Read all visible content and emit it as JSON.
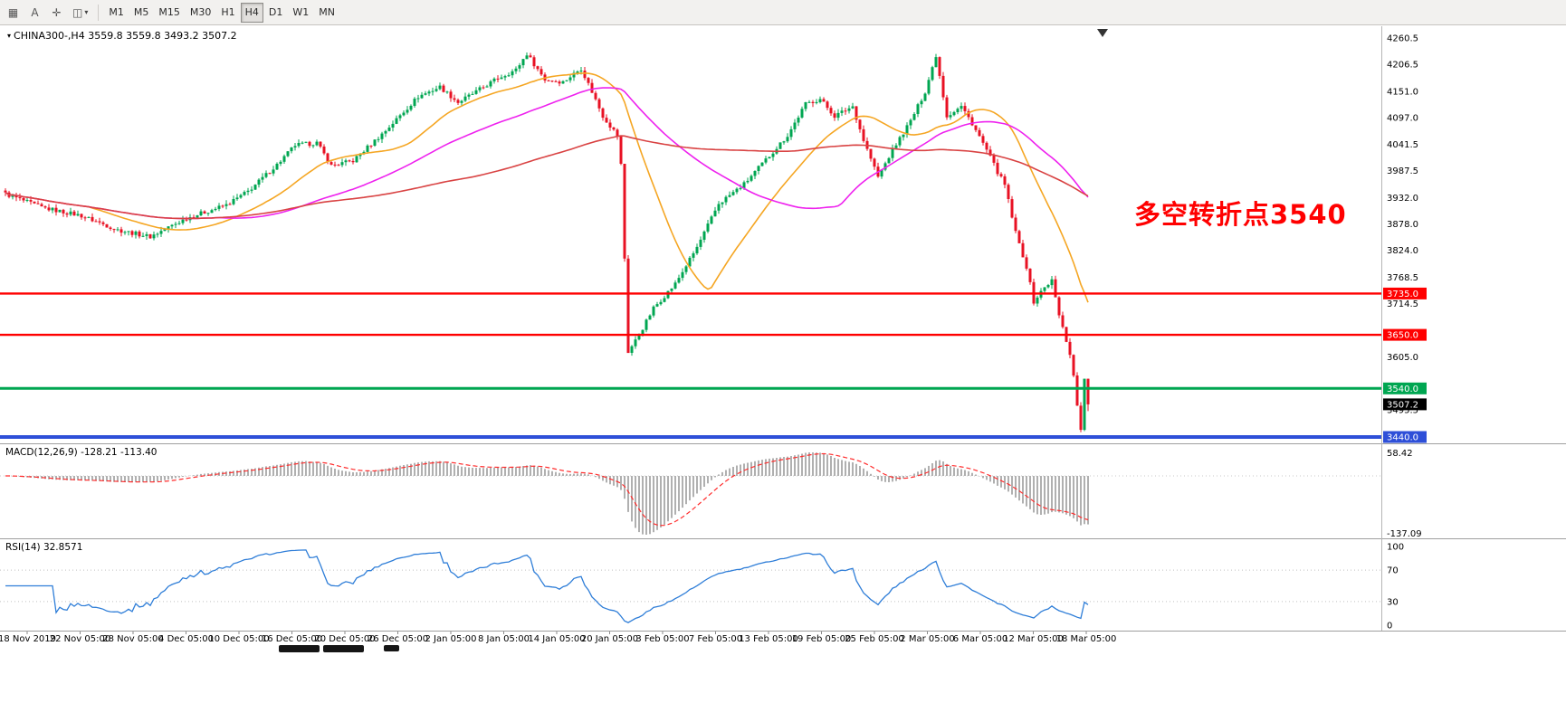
{
  "toolbar": {
    "icon_buttons": [
      {
        "name": "charts-grid-icon",
        "glyph": "▦"
      },
      {
        "name": "text-annotation-icon",
        "glyph": "A"
      },
      {
        "name": "crosshair-icon",
        "glyph": "✛"
      },
      {
        "name": "shapes-icon",
        "glyph": "◫"
      },
      {
        "name": "dropdown-caret-icon",
        "glyph": "▾"
      }
    ],
    "timeframes": [
      "M1",
      "M5",
      "M15",
      "M30",
      "H1",
      "H4",
      "D1",
      "W1",
      "MN"
    ],
    "active_timeframe": "H4"
  },
  "chart": {
    "symbol_line": "CHINA300-,H4  3559.8 3559.8 3493.2 3507.2",
    "annotation": "多空转折点3540"
  },
  "indicators": {
    "macd_label": "MACD(12,26,9) -128.21 -113.40",
    "rsi_label": "RSI(14) 32.8571"
  },
  "chart_data": {
    "type": "candlestick",
    "symbol": "CHINA300-",
    "timeframe": "H4",
    "last_bar": {
      "open": 3559.8,
      "high": 3559.8,
      "low": 3493.2,
      "close": 3507.2
    },
    "bars": 300,
    "noise_amp": 9,
    "wick_amp": 8,
    "price_axis": {
      "min": 3440.0,
      "max": 4260.5,
      "ticks": [
        "4260.5",
        "4206.5",
        "4151.0",
        "4097.0",
        "4041.5",
        "3987.5",
        "3932.0",
        "3878.0",
        "3824.0",
        "3768.5",
        "3714.5",
        "3605.0",
        "3495.5"
      ]
    },
    "colors": {
      "up": "#00a651",
      "down": "#e81123",
      "macd_hist": "#b0b0b0",
      "macd_signal": "#ff2d2d",
      "rsi": "#2f7ed8"
    },
    "moving_averages": [
      {
        "period": 24,
        "color": "#f5a623"
      },
      {
        "period": 60,
        "color": "#ee22ee"
      },
      {
        "period": 130,
        "color": "#d94343"
      }
    ],
    "hlines": [
      {
        "price": 3735.0,
        "label": "3735.0",
        "color": "#ff0000",
        "width": 2.4
      },
      {
        "price": 3650.0,
        "label": "3650.0",
        "color": "#ff0000",
        "width": 2.4
      },
      {
        "price": 3540.0,
        "label": "3540.0",
        "color": "#00a651",
        "width": 3
      },
      {
        "price": 3440.0,
        "label": "3440.0",
        "color": "#2e4fd8",
        "width": 4
      }
    ],
    "current_price_label": {
      "price": 3507.2,
      "label": "3507.2",
      "color": "#000000"
    },
    "close_anchors": [
      [
        0,
        3940
      ],
      [
        10,
        3912
      ],
      [
        21,
        3895
      ],
      [
        31,
        3866
      ],
      [
        40,
        3852
      ],
      [
        50,
        3890
      ],
      [
        61,
        3917
      ],
      [
        67,
        3945
      ],
      [
        75,
        4000
      ],
      [
        80,
        4040
      ],
      [
        86,
        4045
      ],
      [
        90,
        3998
      ],
      [
        96,
        4008
      ],
      [
        105,
        4070
      ],
      [
        114,
        4140
      ],
      [
        120,
        4160
      ],
      [
        125,
        4128
      ],
      [
        130,
        4150
      ],
      [
        136,
        4178
      ],
      [
        141,
        4195
      ],
      [
        144,
        4228
      ],
      [
        149,
        4175
      ],
      [
        154,
        4170
      ],
      [
        159,
        4198
      ],
      [
        162,
        4150
      ],
      [
        165,
        4100
      ],
      [
        169,
        4060
      ],
      [
        170,
        4000
      ],
      [
        172,
        3615
      ],
      [
        175,
        3650
      ],
      [
        179,
        3705
      ],
      [
        185,
        3755
      ],
      [
        191,
        3830
      ],
      [
        197,
        3920
      ],
      [
        204,
        3960
      ],
      [
        210,
        4010
      ],
      [
        216,
        4060
      ],
      [
        221,
        4125
      ],
      [
        225,
        4135
      ],
      [
        229,
        4100
      ],
      [
        234,
        4120
      ],
      [
        237,
        4050
      ],
      [
        241,
        3975
      ],
      [
        245,
        4030
      ],
      [
        250,
        4090
      ],
      [
        254,
        4150
      ],
      [
        257,
        4225
      ],
      [
        260,
        4100
      ],
      [
        264,
        4120
      ],
      [
        267,
        4085
      ],
      [
        271,
        4030
      ],
      [
        274,
        3985
      ],
      [
        276,
        3958
      ],
      [
        279,
        3860
      ],
      [
        282,
        3790
      ],
      [
        284,
        3718
      ],
      [
        287,
        3748
      ],
      [
        289,
        3762
      ],
      [
        291,
        3690
      ],
      [
        294,
        3612
      ],
      [
        295,
        3565
      ],
      [
        296,
        3505
      ],
      [
        297,
        3458
      ],
      [
        298,
        3560
      ],
      [
        299,
        3507
      ]
    ],
    "macd": {
      "fast": 12,
      "slow": 26,
      "signal": 9,
      "scale_top": "58.42",
      "scale_bottom": "-137.09"
    },
    "rsi": {
      "period": 14,
      "levels": [
        70,
        30
      ],
      "scale_labels": [
        "100",
        "70",
        "30",
        "0"
      ]
    },
    "x_axis_labels": [
      "18 Nov 2019",
      "22 Nov 05:00",
      "28 Nov 05:00",
      "4 Dec 05:00",
      "10 Dec 05:00",
      "16 Dec 05:00",
      "20 Dec 05:00",
      "26 Dec 05:00",
      "2 Jan 05:00",
      "8 Jan 05:00",
      "14 Jan 05:00",
      "20 Jan 05:00",
      "3 Feb 05:00",
      "7 Feb 05:00",
      "13 Feb 05:00",
      "19 Feb 05:00",
      "25 Feb 05:00",
      "2 Mar 05:00",
      "6 Mar 05:00",
      "12 Mar 05:00",
      "18 Mar 05:00"
    ]
  }
}
